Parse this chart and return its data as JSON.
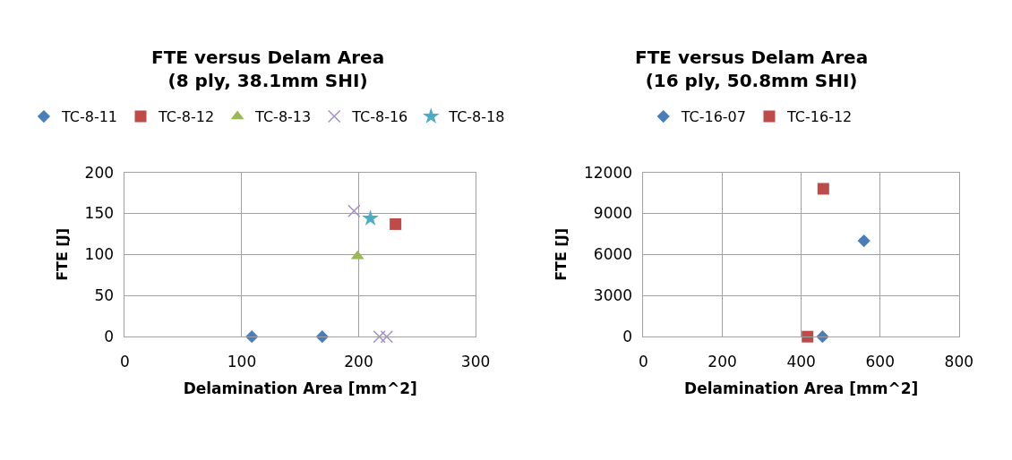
{
  "chart_data": [
    {
      "type": "scatter",
      "title": "FTE versus Delam Area\n(8 ply, 38.1mm SHI)",
      "xlabel": "Delamination Area [mm^2]",
      "ylabel": "FTE [J]",
      "xlim": [
        0,
        300
      ],
      "xticks": [
        0,
        100,
        200,
        300
      ],
      "ylim": [
        0,
        200
      ],
      "yticks": [
        0,
        50,
        100,
        150,
        200
      ],
      "grid": true,
      "legend": "top",
      "series": [
        {
          "name": "TC-8-11",
          "color": "#4a7ebb",
          "marker": "diamond",
          "x": [
            108.6,
            168.8
          ],
          "values": [
            0,
            0
          ]
        },
        {
          "name": "TC-8-12",
          "color": "#be4b48",
          "marker": "square",
          "x": [
            231.5
          ],
          "values": [
            137
          ]
        },
        {
          "name": "TC-8-13",
          "color": "#98b954",
          "marker": "triangle",
          "x": [
            199
          ],
          "values": [
            98
          ]
        },
        {
          "name": "TC-8-16",
          "color": "#a38fc4",
          "marker": "cross",
          "x": [
            196,
            217.7,
            224
          ],
          "values": [
            153,
            0,
            0
          ]
        },
        {
          "name": "TC-8-18",
          "color": "#4bacc6",
          "marker": "star",
          "x": [
            210
          ],
          "values": [
            144
          ]
        }
      ]
    },
    {
      "type": "scatter",
      "title": "FTE versus Delam Area\n(16 ply, 50.8mm SHI)",
      "xlabel": "Delamination Area [mm^2]",
      "ylabel": "FTE [J]",
      "xlim": [
        0,
        800
      ],
      "xticks": [
        0,
        200,
        400,
        600,
        800
      ],
      "ylim": [
        0,
        12000
      ],
      "yticks": [
        0,
        3000,
        6000,
        9000,
        12000
      ],
      "grid": true,
      "legend": "top",
      "series": [
        {
          "name": "TC-16-07",
          "color": "#4a7ebb",
          "marker": "diamond",
          "x": [
            559,
            454
          ],
          "values": [
            7000,
            0
          ]
        },
        {
          "name": "TC-16-12",
          "color": "#be4b48",
          "marker": "square",
          "x": [
            456,
            416
          ],
          "values": [
            10800,
            0
          ]
        }
      ]
    }
  ]
}
